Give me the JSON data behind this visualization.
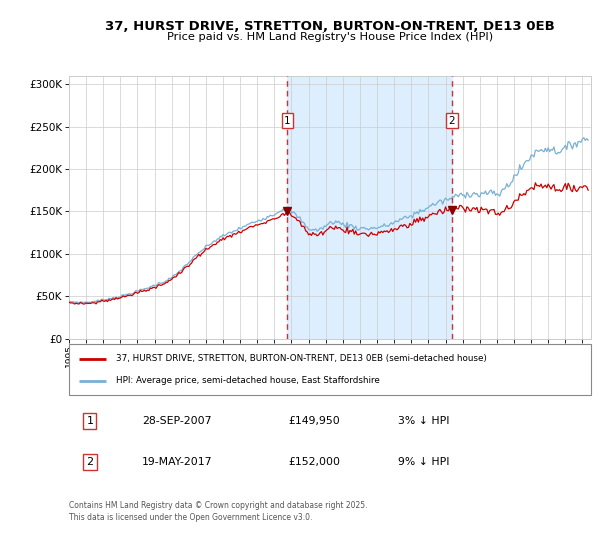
{
  "title_line1": "37, HURST DRIVE, STRETTON, BURTON-ON-TRENT, DE13 0EB",
  "title_line2": "Price paid vs. HM Land Registry's House Price Index (HPI)",
  "ylim": [
    0,
    310000
  ],
  "yticks": [
    0,
    50000,
    100000,
    150000,
    200000,
    250000,
    300000
  ],
  "ytick_labels": [
    "£0",
    "£50K",
    "£100K",
    "£150K",
    "£200K",
    "£250K",
    "£300K"
  ],
  "purchase1_year": 2007.75,
  "purchase1_price": 149950,
  "purchase2_year": 2017.38,
  "purchase2_price": 152000,
  "legend1_label": "37, HURST DRIVE, STRETTON, BURTON-ON-TRENT, DE13 0EB (semi-detached house)",
  "legend2_label": "HPI: Average price, semi-detached house, East Staffordshire",
  "table_row1": [
    "1",
    "28-SEP-2007",
    "£149,950",
    "3% ↓ HPI"
  ],
  "table_row2": [
    "2",
    "19-MAY-2017",
    "£152,000",
    "9% ↓ HPI"
  ],
  "footer": "Contains HM Land Registry data © Crown copyright and database right 2025.\nThis data is licensed under the Open Government Licence v3.0.",
  "line_color_red": "#cc0000",
  "line_color_blue": "#7ab0d4",
  "shade_color": "#ddeeff",
  "bg_color": "#ffffff",
  "grid_color": "#cccccc",
  "point_color": "#880000",
  "dashed_color": "#cc3333",
  "xlim_start": 1995.0,
  "xlim_end": 2025.5
}
